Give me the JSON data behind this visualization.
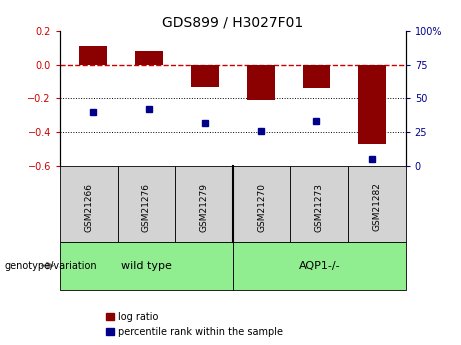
{
  "title": "GDS899 / H3027F01",
  "samples": [
    "GSM21266",
    "GSM21276",
    "GSM21279",
    "GSM21270",
    "GSM21273",
    "GSM21282"
  ],
  "log_ratio": [
    0.11,
    0.08,
    -0.13,
    -0.21,
    -0.14,
    -0.47
  ],
  "percentile_rank": [
    40,
    42,
    32,
    26,
    33,
    5
  ],
  "group_separator": 3,
  "bar_color": "#8B0000",
  "dot_color": "#00008B",
  "ref_line_color": "#CC0000",
  "ylim_left": [
    -0.6,
    0.2
  ],
  "ylim_right": [
    0,
    100
  ],
  "yticks_left": [
    -0.6,
    -0.4,
    -0.2,
    0.0,
    0.2
  ],
  "yticks_right": [
    0,
    25,
    50,
    75,
    100
  ],
  "dotted_lines": [
    -0.2,
    -0.4
  ],
  "genotype_label": "genotype/variation",
  "legend_log_ratio": "log ratio",
  "legend_percentile": "percentile rank within the sample",
  "background_color": "#ffffff",
  "bar_width": 0.5,
  "sample_box_color": "#d3d3d3",
  "group_color": "#90EE90",
  "label_group1": "wild type",
  "label_group2": "AQP1-/-"
}
